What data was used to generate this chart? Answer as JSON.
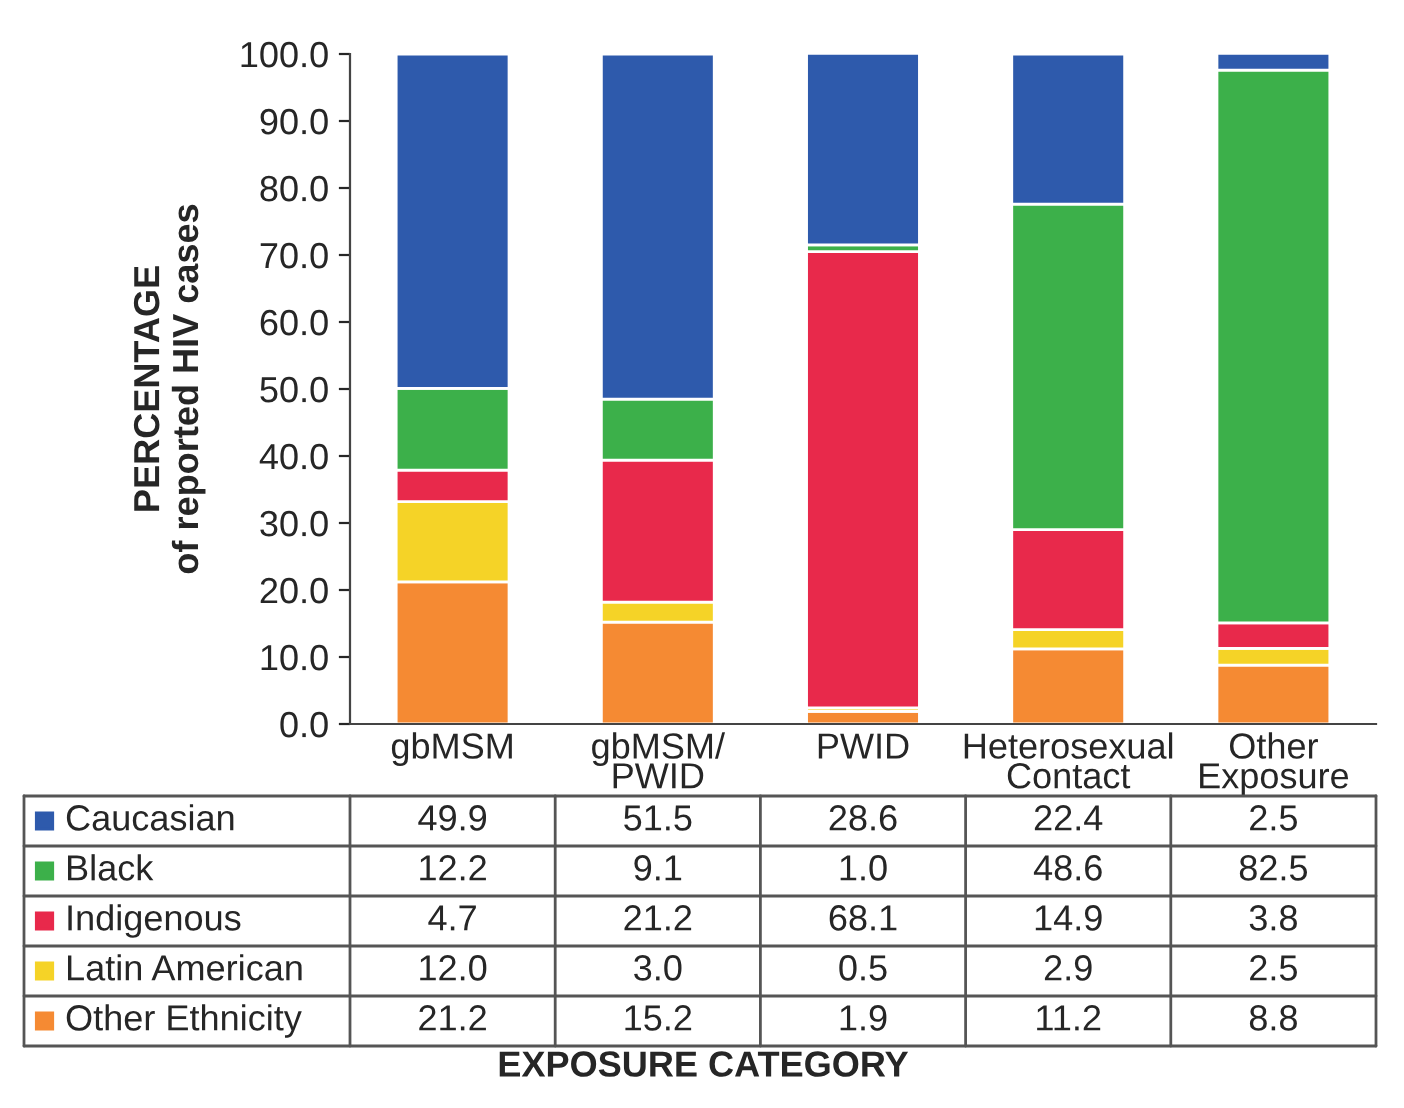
{
  "chart_data": {
    "type": "bar",
    "stacked": true,
    "ylabel": "PERCENTAGE\nof reported HIV cases",
    "annotations": [
      "EXPOSURE CATEGORY"
    ],
    "categories": [
      "gbMSM",
      "gbMSM/\nPWID",
      "PWID",
      "Heterosexual\nContact",
      "Other\nExposure"
    ],
    "series": [
      {
        "name": "Other Ethnicity",
        "color": "#f58a33",
        "values": [
          21.2,
          15.2,
          1.9,
          11.2,
          8.8
        ],
        "value_labels": [
          "21.2",
          "15.2",
          "1.9",
          "11.2",
          "8.8"
        ]
      },
      {
        "name": "Latin American",
        "color": "#f5d327",
        "values": [
          12.0,
          3.0,
          0.5,
          2.9,
          2.5
        ],
        "value_labels": [
          "12.0",
          "3.0",
          "0.5",
          "2.9",
          "2.5"
        ]
      },
      {
        "name": "Indigenous",
        "color": "#e8294b",
        "values": [
          4.7,
          21.2,
          68.1,
          14.9,
          3.8
        ],
        "value_labels": [
          "4.7",
          "21.2",
          "68.1",
          "14.9",
          "3.8"
        ]
      },
      {
        "name": "Black",
        "color": "#3cb04a",
        "values": [
          12.2,
          9.1,
          1.0,
          48.6,
          82.5
        ],
        "value_labels": [
          "12.2",
          "9.1",
          "1.0",
          "48.6",
          "82.5"
        ]
      },
      {
        "name": "Caucasian",
        "color": "#2e5aac",
        "values": [
          49.9,
          51.5,
          28.6,
          22.4,
          2.5
        ],
        "value_labels": [
          "49.9",
          "51.5",
          "28.6",
          "22.4",
          "2.5"
        ]
      }
    ],
    "ylim": [
      0,
      100
    ],
    "yticks": [
      {
        "value": 0,
        "label": "0.0"
      },
      {
        "value": 10,
        "label": "10.0"
      },
      {
        "value": 20,
        "label": "20.0"
      },
      {
        "value": 30,
        "label": "30.0"
      },
      {
        "value": 40,
        "label": "40.0"
      },
      {
        "value": 50,
        "label": "50.0"
      },
      {
        "value": 60,
        "label": "60.0"
      },
      {
        "value": 70,
        "label": "70.0"
      },
      {
        "value": 80,
        "label": "80.0"
      },
      {
        "value": 90,
        "label": "90.0"
      },
      {
        "value": 100,
        "label": "100.0"
      }
    ],
    "grid": false,
    "legend": "bottom left"
  }
}
